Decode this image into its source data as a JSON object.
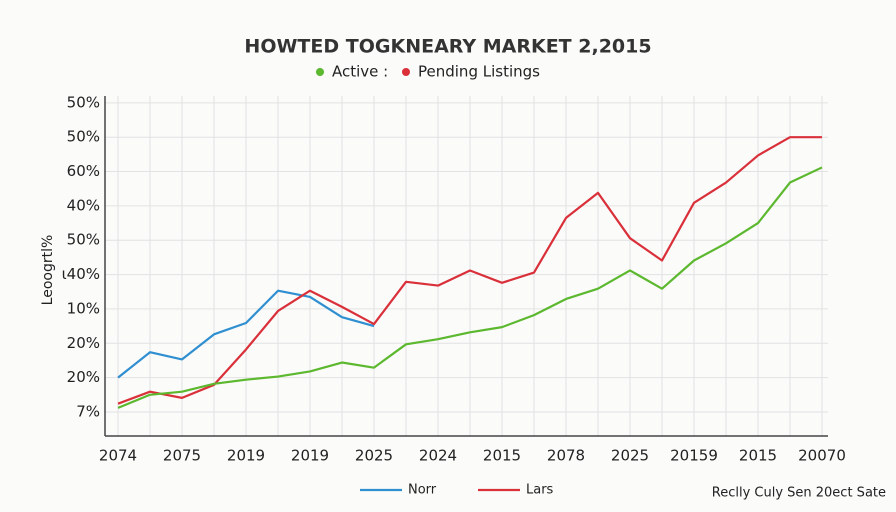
{
  "chart_data": {
    "type": "line",
    "title": "HOWTED TOGKNEARY MARKET 2,2015",
    "legend_top": [
      {
        "label": "Active :",
        "color": "#5cb82e"
      },
      {
        "label": "Pending Listings",
        "color": "#d9303a"
      }
    ],
    "y_label": "Leoogrtl%",
    "footer": "Reclly Culy Sen 20ect Sate",
    "categories": [
      "2074",
      null,
      "2075",
      null,
      "2019",
      null,
      "2019",
      null,
      "2025",
      null,
      "2024",
      null,
      "2015",
      null,
      "2078",
      null,
      "2025",
      null,
      "20159",
      null,
      "2015",
      null,
      "20070"
    ],
    "ylim": [
      -0.7,
      9.2
    ],
    "yticks": [
      {
        "value": 0,
        "label": "7%"
      },
      {
        "value": 1,
        "label": "20%"
      },
      {
        "value": 2,
        "label": "20%"
      },
      {
        "value": 3,
        "label": "10%"
      },
      {
        "value": 4,
        "label": "ι40%"
      },
      {
        "value": 5,
        "label": "50%"
      },
      {
        "value": 6,
        "label": "40%"
      },
      {
        "value": 7,
        "label": "60%"
      },
      {
        "value": 8,
        "label": "50%"
      },
      {
        "value": 9,
        "label": "50%"
      }
    ],
    "grid": true,
    "series": [
      {
        "name": "Norr",
        "color": "#2f8fd0",
        "values": [
          1.0,
          1.74,
          1.53,
          2.26,
          2.59,
          3.53,
          3.35,
          2.76,
          2.5,
          null,
          null,
          null,
          null,
          null,
          null,
          null,
          null,
          null,
          null,
          null,
          null,
          null,
          null
        ]
      },
      {
        "name": "Lars",
        "color": "#d9303a",
        "values": [
          0.24,
          0.59,
          0.41,
          0.79,
          1.82,
          2.94,
          3.53,
          3.06,
          2.56,
          3.79,
          3.68,
          4.12,
          3.76,
          4.06,
          5.65,
          6.38,
          5.06,
          4.41,
          6.09,
          6.68,
          7.47,
          8.0,
          8.0
        ]
      },
      {
        "color": "#5cb82e",
        "values": [
          0.12,
          0.5,
          0.59,
          0.82,
          0.94,
          1.03,
          1.18,
          1.44,
          1.29,
          1.97,
          2.12,
          2.32,
          2.47,
          2.82,
          3.29,
          3.59,
          4.12,
          3.59,
          4.41,
          4.91,
          5.5,
          6.68,
          7.12
        ]
      }
    ]
  }
}
